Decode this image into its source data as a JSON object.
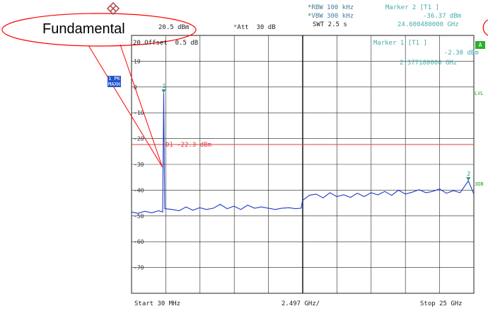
{
  "header": {
    "rbw": "RBW 100 kHz",
    "vbw": "VBW 300 kHz",
    "swt": "SWT 2.5 s",
    "marker2_label": "Marker 2 [T1 ]",
    "marker2_level": "-36.37 dBm",
    "marker2_freq": "24.600480000 GHz",
    "ref": "20.5 dBm",
    "att": "Att  30 dB",
    "offset": "20 Offset  0.5 dB",
    "marker1_label": "Marker 1 [T1 ]",
    "marker1_level": "-2.30 dBm",
    "marker1_freq": "2.377180000 GHz",
    "star": "*"
  },
  "side": {
    "trace_tag_1": "1 PK",
    "trace_tag_2": "MAXH",
    "right_a": "A",
    "right_lvl": "LVL",
    "right_3db": "3DB"
  },
  "callout": {
    "text": "Fundamental"
  },
  "footer": {
    "start": "Start 30 MHz",
    "span_per_div": "2.497 GHz/",
    "stop": "Stop 25 GHz"
  },
  "colors": {
    "trace": "#1f3ecc",
    "display_line": "#e04040",
    "grid": "#222222",
    "callout": "#ff0000",
    "marker": "#2a8a8a"
  },
  "chart_data": {
    "type": "line",
    "x_unit": "GHz",
    "y_unit": "dBm",
    "xlim": [
      0.03,
      25
    ],
    "ylim": [
      -80,
      20
    ],
    "y_ticks": [
      {
        "value": 10,
        "label": "10"
      },
      {
        "value": 0,
        "label": "0"
      },
      {
        "value": -10,
        "label": "-10"
      },
      {
        "value": -20,
        "label": "-20"
      },
      {
        "value": -30,
        "label": "-30"
      },
      {
        "value": -40,
        "label": "-40"
      },
      {
        "value": -50,
        "label": "-50"
      },
      {
        "value": -60,
        "label": "-60"
      },
      {
        "value": -70,
        "label": "-70"
      }
    ],
    "display_line": {
      "label": "D1 -22.3 dBm",
      "value": -22.3
    },
    "markers": [
      {
        "id": "1",
        "x": 2.377,
        "y": -2.3
      },
      {
        "id": "2",
        "x": 24.6,
        "y": -36.37
      }
    ],
    "series": [
      {
        "points": [
          [
            0.03,
            -48.5
          ],
          [
            0.5,
            -49.0
          ],
          [
            1.0,
            -48.2
          ],
          [
            1.5,
            -48.8
          ],
          [
            2.0,
            -48.0
          ],
          [
            2.3,
            -48.5
          ],
          [
            2.377,
            -2.3
          ],
          [
            2.45,
            -47.2
          ],
          [
            3.0,
            -47.5
          ],
          [
            3.5,
            -48.0
          ],
          [
            4.0,
            -46.5
          ],
          [
            4.5,
            -47.8
          ],
          [
            5.0,
            -46.8
          ],
          [
            5.5,
            -47.5
          ],
          [
            6.0,
            -47.0
          ],
          [
            6.5,
            -45.5
          ],
          [
            7.0,
            -47.2
          ],
          [
            7.5,
            -46.2
          ],
          [
            8.0,
            -47.5
          ],
          [
            8.5,
            -45.8
          ],
          [
            9.0,
            -47.0
          ],
          [
            9.5,
            -46.5
          ],
          [
            10.0,
            -47.0
          ],
          [
            10.5,
            -47.5
          ],
          [
            11.0,
            -47.0
          ],
          [
            11.5,
            -46.8
          ],
          [
            12.0,
            -47.2
          ],
          [
            12.4,
            -47.0
          ],
          [
            12.5,
            -44.0
          ],
          [
            13.0,
            -42.0
          ],
          [
            13.5,
            -41.5
          ],
          [
            14.0,
            -43.0
          ],
          [
            14.5,
            -41.0
          ],
          [
            15.0,
            -42.5
          ],
          [
            15.5,
            -41.8
          ],
          [
            16.0,
            -42.8
          ],
          [
            16.5,
            -41.2
          ],
          [
            17.0,
            -42.5
          ],
          [
            17.5,
            -41.0
          ],
          [
            18.0,
            -41.8
          ],
          [
            18.5,
            -40.5
          ],
          [
            19.0,
            -42.0
          ],
          [
            19.5,
            -40.0
          ],
          [
            20.0,
            -41.5
          ],
          [
            20.5,
            -40.8
          ],
          [
            21.0,
            -39.8
          ],
          [
            21.5,
            -41.0
          ],
          [
            22.0,
            -40.5
          ],
          [
            22.5,
            -39.5
          ],
          [
            23.0,
            -41.2
          ],
          [
            23.5,
            -40.2
          ],
          [
            24.0,
            -41.0
          ],
          [
            24.6,
            -36.4
          ],
          [
            25.0,
            -41.5
          ]
        ]
      }
    ]
  }
}
